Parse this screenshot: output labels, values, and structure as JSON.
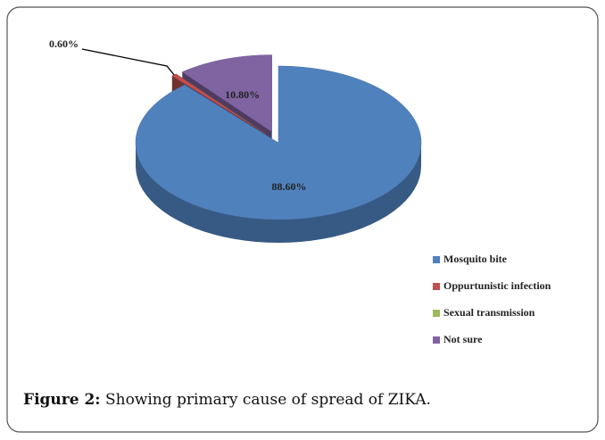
{
  "chart_data": {
    "type": "pie3d",
    "categories": [
      "Mosquito bite",
      "Oppurtunistic infection",
      "Sexual transmission",
      "Not sure"
    ],
    "values": [
      88.6,
      0.6,
      0,
      10.8
    ],
    "value_labels": [
      "88.60%",
      "0.60%",
      null,
      "10.80%"
    ],
    "colors": [
      "#4f81bd",
      "#c0504d",
      "#9bbb59",
      "#8064a2"
    ],
    "legend": "right"
  },
  "caption": {
    "label": "Figure 2:",
    "text": "Showing primary cause of spread of ZIKA."
  }
}
